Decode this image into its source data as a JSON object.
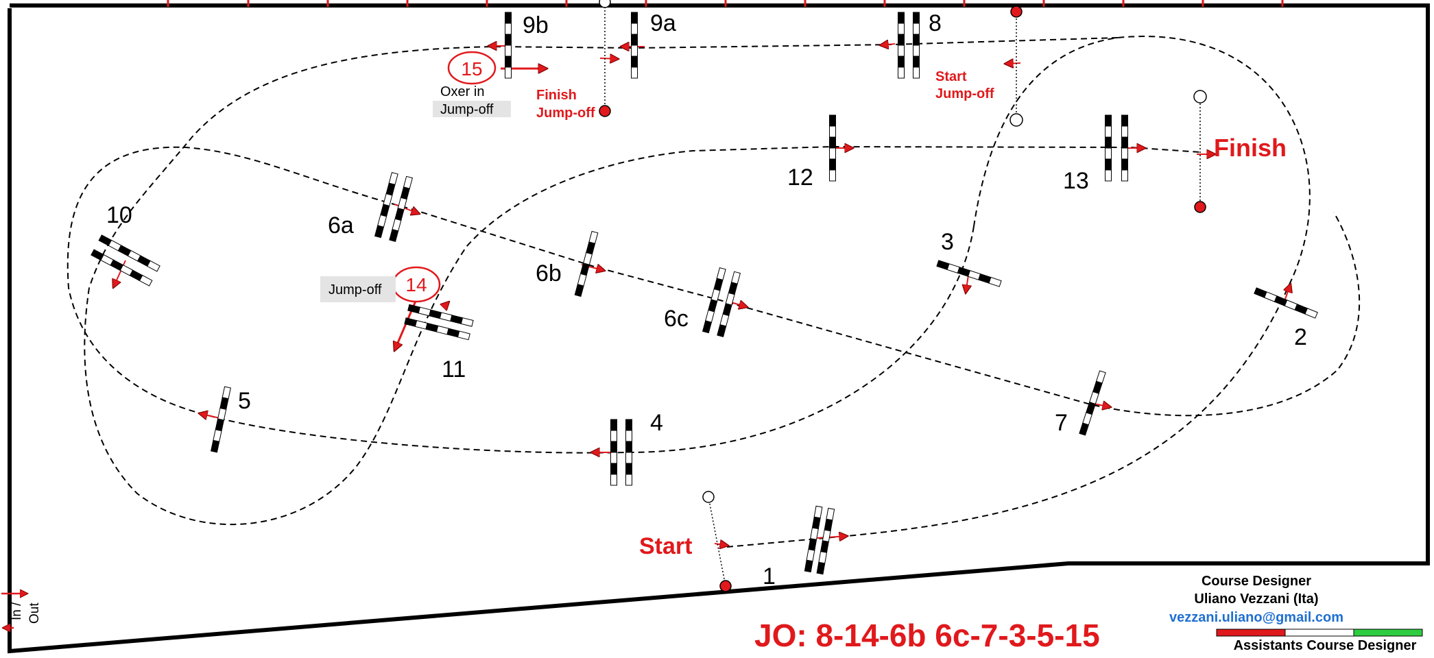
{
  "jumps": [
    {
      "id": "j1",
      "label": "1"
    },
    {
      "id": "j2",
      "label": "2"
    },
    {
      "id": "j3",
      "label": "3"
    },
    {
      "id": "j4",
      "label": "4"
    },
    {
      "id": "j5",
      "label": "5"
    },
    {
      "id": "j6a",
      "label": "6a"
    },
    {
      "id": "j6b",
      "label": "6b"
    },
    {
      "id": "j6c",
      "label": "6c"
    },
    {
      "id": "j7",
      "label": "7"
    },
    {
      "id": "j8",
      "label": "8"
    },
    {
      "id": "j9a",
      "label": "9a"
    },
    {
      "id": "j9b",
      "label": "9b"
    },
    {
      "id": "j10",
      "label": "10"
    },
    {
      "id": "j11",
      "label": "11"
    },
    {
      "id": "j12",
      "label": "12"
    },
    {
      "id": "j13",
      "label": "13"
    }
  ],
  "jumpoff_fences": [
    {
      "label": "15",
      "note_line1": "Oxer in",
      "note_line2": "Jump-off"
    },
    {
      "label": "14",
      "note": "Jump-off"
    }
  ],
  "markers": {
    "start": "Start",
    "finish": "Finish",
    "start_jumpoff_line1": "Start",
    "start_jumpoff_line2": "Jump-off",
    "finish_jumpoff_line1": "Finish",
    "finish_jumpoff_line2": "Jump-off",
    "in_out_line1": "In /",
    "in_out_line2": "Out"
  },
  "jumpoff_sequence": "JO: 8-14-6b 6c-7-3-5-15",
  "credits": {
    "designer_title": "Course Designer",
    "designer_name": "Uliano Vezzani (Ita)",
    "designer_email": "vezzani.uliano@gmail.com",
    "assistants_title": "Assistants Course Designer",
    "flag_colors": [
      "#e0191c",
      "#ffffff",
      "#2ecc40"
    ]
  },
  "colors": {
    "accent": "#e0191c",
    "email": "#1f6fd1",
    "border": "#000000",
    "label_bg": "#e4e4e4"
  }
}
